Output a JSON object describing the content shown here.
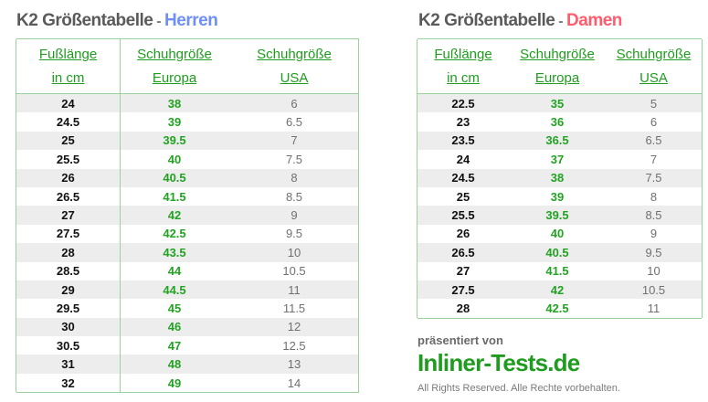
{
  "men": {
    "title_main": "K2 Größentabelle",
    "title_sep": " - ",
    "title_gender": "Herren",
    "headers": [
      {
        "line1": "Fußlänge",
        "line2": "in cm"
      },
      {
        "line1": "Schuhgröße",
        "line2": "Europa"
      },
      {
        "line1": "Schuhgröße",
        "line2": "USA"
      }
    ],
    "rows": [
      [
        "24",
        "38",
        "6"
      ],
      [
        "24.5",
        "39",
        "6.5"
      ],
      [
        "25",
        "39.5",
        "7"
      ],
      [
        "25.5",
        "40",
        "7.5"
      ],
      [
        "26",
        "40.5",
        "8"
      ],
      [
        "26.5",
        "41.5",
        "8.5"
      ],
      [
        "27",
        "42",
        "9"
      ],
      [
        "27.5",
        "42.5",
        "9.5"
      ],
      [
        "28",
        "43.5",
        "10"
      ],
      [
        "28.5",
        "44",
        "10.5"
      ],
      [
        "29",
        "44.5",
        "11"
      ],
      [
        "29.5",
        "45",
        "11.5"
      ],
      [
        "30",
        "46",
        "12"
      ],
      [
        "30.5",
        "47",
        "12.5"
      ],
      [
        "31",
        "48",
        "13"
      ],
      [
        "32",
        "49",
        "14"
      ]
    ]
  },
  "women": {
    "title_main": "K2 Größentabelle",
    "title_sep": " - ",
    "title_gender": "Damen",
    "headers": [
      {
        "line1": "Fußlänge",
        "line2": "in cm"
      },
      {
        "line1": "Schuhgröße",
        "line2": "Europa"
      },
      {
        "line1": "Schuhgröße",
        "line2": "USA"
      }
    ],
    "rows": [
      [
        "22.5",
        "35",
        "5"
      ],
      [
        "23",
        "36",
        "6"
      ],
      [
        "23.5",
        "36.5",
        "6.5"
      ],
      [
        "24",
        "37",
        "7"
      ],
      [
        "24.5",
        "38",
        "7.5"
      ],
      [
        "25",
        "39",
        "8"
      ],
      [
        "25.5",
        "39.5",
        "8.5"
      ],
      [
        "26",
        "40",
        "9"
      ],
      [
        "26.5",
        "40.5",
        "9.5"
      ],
      [
        "27",
        "41.5",
        "10"
      ],
      [
        "27.5",
        "42",
        "10.5"
      ],
      [
        "28",
        "42.5",
        "11"
      ]
    ]
  },
  "credit": {
    "presented": "präsentiert von",
    "brand": "Inliner-Tests.de",
    "rights": "All Rights Reserved. Alle Rechte vorbehalten."
  },
  "colors": {
    "men_accent": "#6f8ff5",
    "women_accent": "#ff5d6e",
    "green": "#22a322",
    "stripe": "#ededed"
  }
}
